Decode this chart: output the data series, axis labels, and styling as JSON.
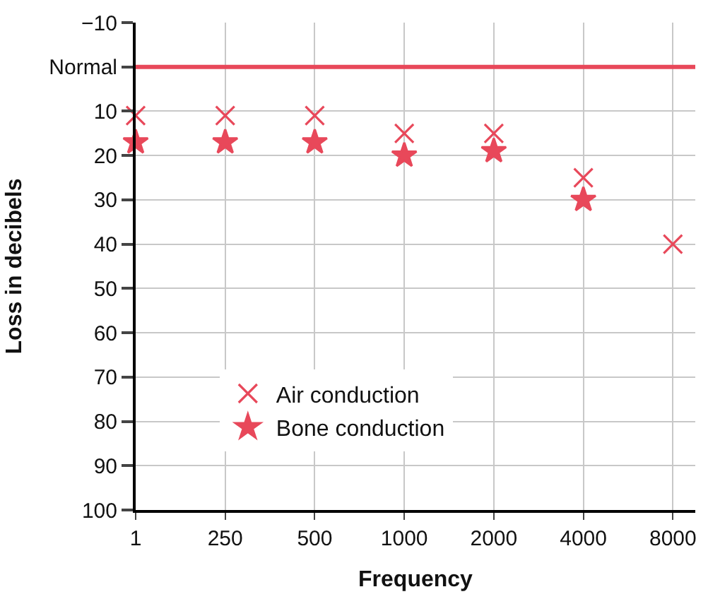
{
  "chart_data": {
    "type": "scatter",
    "xlabel": "Frequency",
    "ylabel": "Loss in decibels",
    "categories": [
      "1",
      "250",
      "500",
      "1000",
      "2000",
      "4000",
      "8000"
    ],
    "series": [
      {
        "name": "Air conduction",
        "color": "#e8485a",
        "marker": "cross",
        "values": [
          11,
          11,
          11,
          15,
          15,
          25,
          40
        ]
      },
      {
        "name": "Bone conduction",
        "color": "#e8485a",
        "marker": "star",
        "values": [
          17,
          17,
          17,
          20,
          19,
          30,
          null
        ]
      }
    ],
    "ylim": [
      100,
      -10
    ],
    "yticks": [
      {
        "value": -10,
        "label": "−10"
      },
      {
        "value": 0,
        "label": "Normal"
      },
      10,
      20,
      30,
      40,
      50,
      60,
      70,
      80,
      90,
      100
    ],
    "ref_lines": [
      {
        "axis": "y",
        "value": 0,
        "color": "#e8485a"
      }
    ],
    "grid": true,
    "legend": "bottom left"
  }
}
